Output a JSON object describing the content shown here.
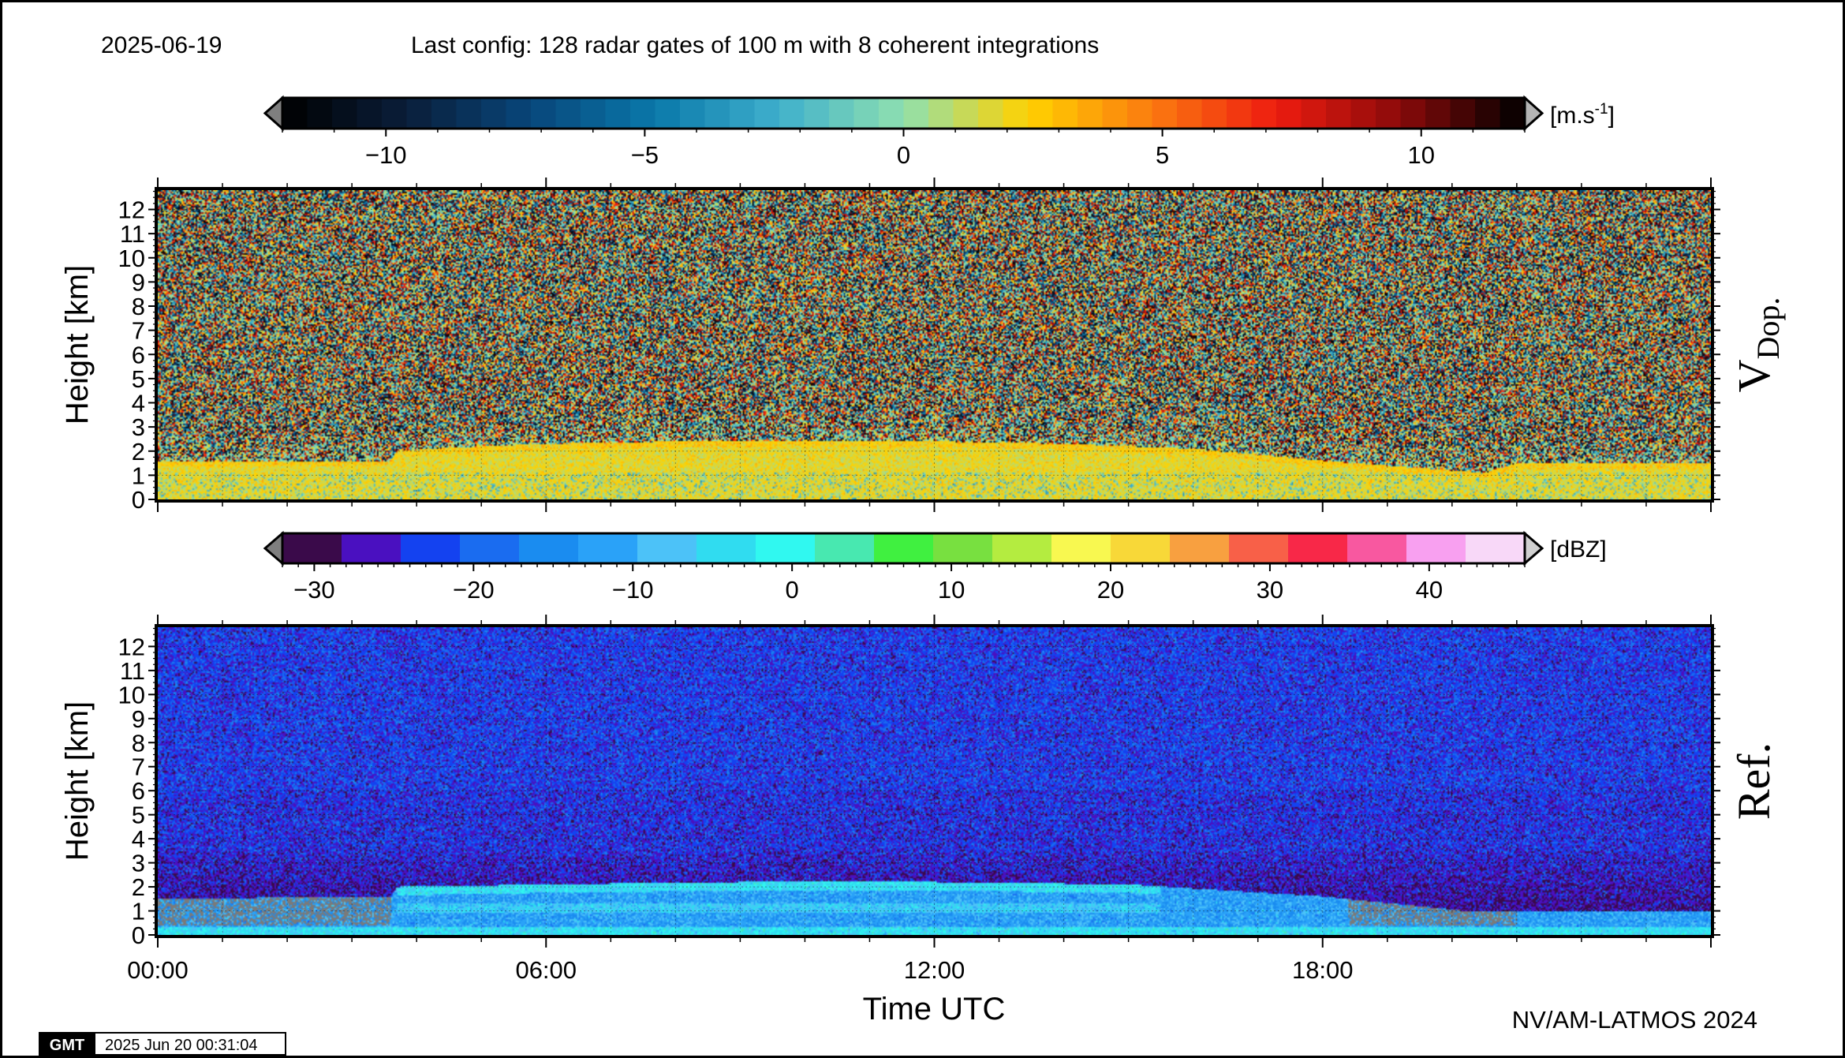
{
  "header": {
    "date": "2025-06-19",
    "config": "Last config: 128 radar gates of 100 m with 8 coherent integrations"
  },
  "footer": {
    "gmt_logo": "GMT",
    "timestamp": "2025 Jun 20 00:31:04",
    "credit": "NV/AM-LATMOS 2024"
  },
  "colors": {
    "missing_gray": "#7a7a7a",
    "velocity_stops": [
      "#000000",
      "#0a1e3a",
      "#08467a",
      "#0a78aa",
      "#3fb0cc",
      "#8fe0b0",
      "#ffd200",
      "#fb7a10",
      "#ee1c10",
      "#8a0a0a",
      "#000000"
    ],
    "dbz_bins": [
      "#3a0a4a",
      "#4a10c0",
      "#1442f0",
      "#1a6cf0",
      "#1a8cf0",
      "#2aa2f8",
      "#4cc2f8",
      "#30dcf0",
      "#30f8f0",
      "#48e8b0",
      "#40f040",
      "#78e040",
      "#b4ec40",
      "#f8f850",
      "#f8d838",
      "#f8a040",
      "#f86048",
      "#f82848",
      "#f858a0",
      "#f8a0f0",
      "#f8d8f8"
    ]
  },
  "chart_data": [
    {
      "type": "heatmap",
      "panel_label_main": "V",
      "panel_label_sub": "Dop.",
      "ylabel": "Height [km]",
      "xlabel": "",
      "ylim": [
        0,
        12.8
      ],
      "xlim_hours": [
        0,
        24
      ],
      "y_ticks": [
        "0",
        "1",
        "2",
        "3",
        "4",
        "5",
        "6",
        "7",
        "8",
        "9",
        "10",
        "11",
        "12"
      ],
      "x_tick_labels": [],
      "colorbar": {
        "unit_base": "[m.s",
        "unit_exp": "-1",
        "unit_close": "]",
        "range": [
          -12,
          12
        ],
        "tick_values": [
          -10,
          -5,
          0,
          5,
          10
        ],
        "tick_labels": [
          "−10",
          "−5",
          "0",
          "5",
          "10"
        ]
      },
      "signal": {
        "layer_top_km": [
          [
            0,
            1.6
          ],
          [
            3.6,
            1.6
          ],
          [
            3.7,
            2.0
          ],
          [
            5,
            2.2
          ],
          [
            6,
            2.3
          ],
          [
            8,
            2.4
          ],
          [
            10,
            2.45
          ],
          [
            12,
            2.4
          ],
          [
            14,
            2.3
          ],
          [
            16,
            2.1
          ],
          [
            18,
            1.6
          ],
          [
            20.5,
            1.1
          ],
          [
            21,
            1.5
          ],
          [
            24,
            1.5
          ]
        ],
        "velocity_mean": 1.8
      }
    },
    {
      "type": "heatmap",
      "panel_label_main": "Ref.",
      "panel_label_sub": "",
      "ylabel": "Height [km]",
      "xlabel": "Time UTC",
      "ylim": [
        0,
        12.8
      ],
      "xlim_hours": [
        0,
        24
      ],
      "y_ticks": [
        "0",
        "1",
        "2",
        "3",
        "4",
        "5",
        "6",
        "7",
        "8",
        "9",
        "10",
        "11",
        "12"
      ],
      "x_tick_labels": [
        "00:00",
        "06:00",
        "12:00",
        "18:00"
      ],
      "x_tick_hours": [
        0,
        6,
        12,
        18
      ],
      "colorbar": {
        "unit_base": "[dBZ]",
        "unit_exp": "",
        "unit_close": "",
        "range": [
          -32,
          46
        ],
        "tick_values": [
          -30,
          -20,
          -10,
          0,
          10,
          20,
          30,
          40
        ],
        "tick_labels": [
          "−30",
          "−20",
          "−10",
          "0",
          "10",
          "20",
          "30",
          "40"
        ]
      },
      "signal": {
        "cloud_top_km": [
          [
            0,
            1.5
          ],
          [
            3.6,
            1.6
          ],
          [
            3.7,
            2.0
          ],
          [
            6,
            2.1
          ],
          [
            9,
            2.2
          ],
          [
            12,
            2.2
          ],
          [
            15,
            2.1
          ],
          [
            18,
            1.6
          ],
          [
            20.2,
            1.0
          ],
          [
            24,
            1.0
          ]
        ],
        "bright_layer_hours": [
          3.7,
          15.5
        ]
      }
    }
  ]
}
